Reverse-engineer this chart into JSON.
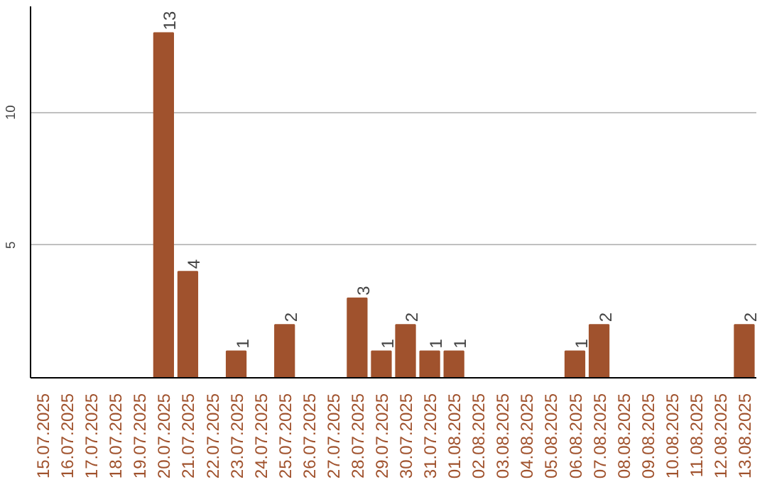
{
  "chart_data": {
    "type": "bar",
    "categories": [
      "15.07.2025",
      "16.07.2025",
      "17.07.2025",
      "18.07.2025",
      "19.07.2025",
      "20.07.2025",
      "21.07.2025",
      "22.07.2025",
      "23.07.2025",
      "24.07.2025",
      "25.07.2025",
      "26.07.2025",
      "27.07.2025",
      "28.07.2025",
      "29.07.2025",
      "30.07.2025",
      "31.07.2025",
      "01.08.2025",
      "02.08.2025",
      "03.08.2025",
      "04.08.2025",
      "05.08.2025",
      "06.08.2025",
      "07.08.2025",
      "08.08.2025",
      "09.08.2025",
      "10.08.2025",
      "11.08.2025",
      "12.08.2025",
      "13.08.2025"
    ],
    "values": [
      0,
      0,
      0,
      0,
      0,
      13,
      4,
      0,
      1,
      0,
      2,
      0,
      0,
      3,
      1,
      2,
      1,
      1,
      0,
      0,
      0,
      0,
      1,
      2,
      0,
      0,
      0,
      0,
      0,
      2
    ],
    "value_labels": [
      null,
      null,
      null,
      null,
      null,
      "13",
      "4",
      null,
      "1",
      null,
      "2",
      null,
      null,
      "3",
      "1",
      "2",
      "1",
      "1",
      null,
      null,
      null,
      null,
      "1",
      "2",
      null,
      null,
      null,
      null,
      null,
      "2"
    ],
    "color": "#a0522d",
    "ylim": [
      0,
      14
    ],
    "yticks": [
      5,
      10
    ],
    "grid": "y"
  }
}
